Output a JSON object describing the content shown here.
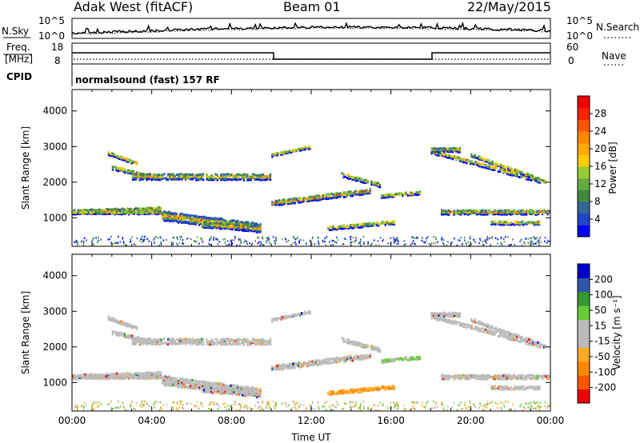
{
  "header": {
    "title": "Adak West (fitACF)",
    "beam": "Beam 01",
    "date": "22/May/2015"
  },
  "top_panel": {
    "left_label": "N.Sky",
    "right_label": "N.Search",
    "tick_high": "10^5",
    "tick_low": "10^0",
    "right_tick_high": "10^5",
    "right_tick_low": "10^0"
  },
  "freq_panel": {
    "left_label_line1": "Freq.",
    "left_label_line2": "[MHz]",
    "right_label": "Nave",
    "left_ticks": [
      "18",
      "8"
    ],
    "right_ticks": [
      "60",
      "0"
    ],
    "cpid_label": "CPID",
    "cpid_text": "normalsound (fast) 157 RF"
  },
  "colors": {
    "power": [
      "#0000ff",
      "#2244cc",
      "#336699",
      "#448844",
      "#66aa44",
      "#99cc33",
      "#ffcc00",
      "#ffaa00",
      "#ff8800",
      "#ff5500",
      "#ff2200",
      "#ee0000"
    ],
    "velocity_neg": [
      "#ee0000",
      "#ff5500",
      "#ff8800",
      "#ffaa22"
    ],
    "velocity_gray": "#bbbbbb",
    "velocity_pos": [
      "#66cc33",
      "#339933",
      "#3355aa",
      "#0000cc"
    ]
  },
  "chart_data": [
    {
      "type": "heatmap",
      "name": "power",
      "ylabel": "Slant Range [km]",
      "yticks": [
        "1000",
        "2000",
        "3000",
        "4000"
      ],
      "ylim": [
        200,
        4600
      ],
      "colorbar_label": "Power [dB]",
      "colorbar_ticks": [
        "4",
        "8",
        "12",
        "16",
        "20",
        "24",
        "28"
      ],
      "xlim_hours": [
        0,
        24
      ]
    },
    {
      "type": "heatmap",
      "name": "velocity",
      "ylabel": "Slant Range [km]",
      "yticks": [
        "1000",
        "2000",
        "3000",
        "4000"
      ],
      "ylim": [
        200,
        4600
      ],
      "colorbar_label": "Velocity [m s⁻¹]",
      "colorbar_ticks": [
        "-200",
        "-100",
        "-50",
        "-15",
        "15",
        "50",
        "100",
        "200"
      ],
      "xlabel": "Time UT",
      "xticks": [
        "00:00",
        "04:00",
        "08:00",
        "12:00",
        "16:00",
        "20:00",
        "00:00"
      ],
      "xlim_hours": [
        0,
        24
      ]
    }
  ]
}
